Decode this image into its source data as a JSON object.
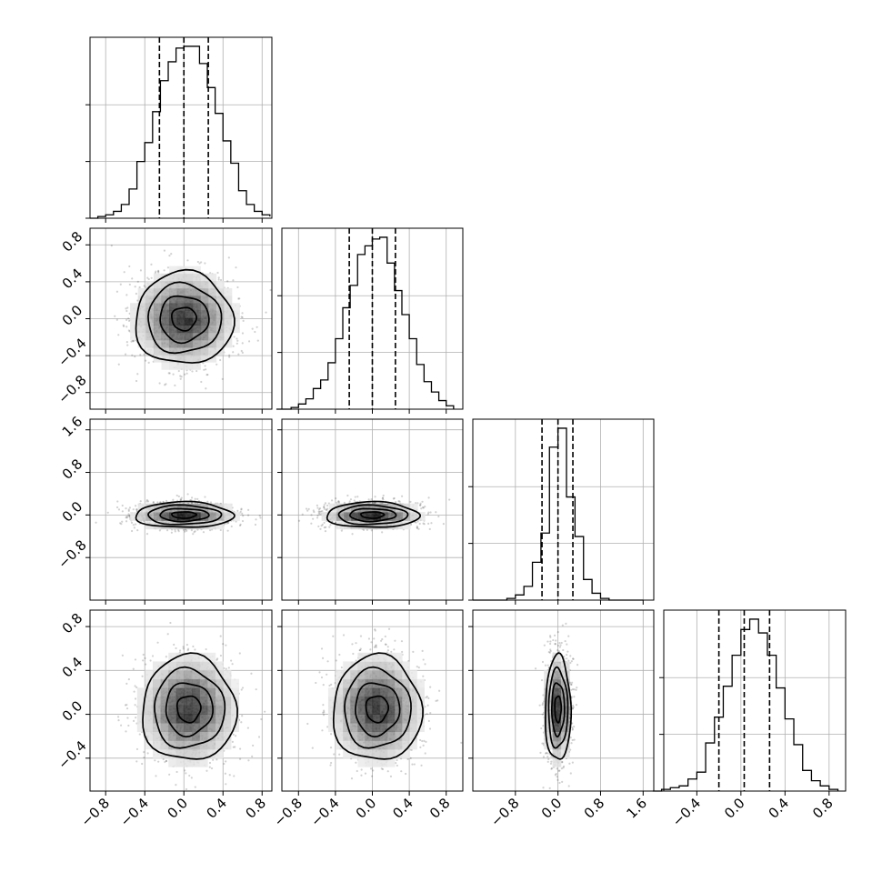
{
  "chart_data": {
    "type": "corner",
    "title": "",
    "n_params": 4,
    "grid": true,
    "quantiles_shown": [
      0.16,
      0.5,
      0.84
    ],
    "density_colormap": [
      "#ffffff",
      "#000000"
    ],
    "histograms": [
      {
        "index": 0,
        "bin_edges": [
          -0.96,
          -0.88,
          -0.8,
          -0.72,
          -0.64,
          -0.56,
          -0.48,
          -0.4,
          -0.32,
          -0.24,
          -0.16,
          -0.08,
          0.0,
          0.08,
          0.16,
          0.24,
          0.32,
          0.4,
          0.48,
          0.56,
          0.64,
          0.72,
          0.8,
          0.88
        ],
        "relative_counts": [
          0.0,
          0.01,
          0.02,
          0.04,
          0.08,
          0.17,
          0.33,
          0.44,
          0.62,
          0.8,
          0.91,
          0.99,
          1.0,
          1.0,
          0.9,
          0.76,
          0.61,
          0.45,
          0.32,
          0.16,
          0.08,
          0.04,
          0.02,
          0.01
        ],
        "quantiles": [
          -0.25,
          0.0,
          0.25
        ]
      },
      {
        "index": 1,
        "bin_edges": [
          -1.04,
          -0.96,
          -0.88,
          -0.8,
          -0.72,
          -0.64,
          -0.56,
          -0.48,
          -0.4,
          -0.32,
          -0.24,
          -0.16,
          -0.08,
          0.0,
          0.08,
          0.16,
          0.24,
          0.32,
          0.4,
          0.48,
          0.56,
          0.64,
          0.72,
          0.8,
          0.88
        ],
        "relative_counts": [
          0.0,
          0.0,
          0.01,
          0.03,
          0.06,
          0.12,
          0.17,
          0.27,
          0.41,
          0.59,
          0.72,
          0.9,
          0.95,
          0.99,
          1.0,
          0.85,
          0.69,
          0.55,
          0.41,
          0.26,
          0.16,
          0.1,
          0.05,
          0.02
        ],
        "quantiles": [
          -0.25,
          0.0,
          0.25
        ]
      },
      {
        "index": 2,
        "bin_edges": [
          -1.6,
          -1.44,
          -1.28,
          -1.12,
          -0.96,
          -0.8,
          -0.64,
          -0.48,
          -0.32,
          -0.16,
          0.0,
          0.16,
          0.32,
          0.48,
          0.64,
          0.8,
          0.96,
          1.12,
          1.28,
          1.44,
          1.6
        ],
        "relative_counts": [
          0.0,
          0.0,
          0.0,
          0.0,
          0.01,
          0.03,
          0.08,
          0.22,
          0.39,
          0.89,
          1.0,
          0.6,
          0.37,
          0.12,
          0.04,
          0.01,
          0.0,
          0.0,
          0.0,
          0.0
        ],
        "quantiles": [
          -0.3,
          0.0,
          0.28
        ]
      },
      {
        "index": 3,
        "bin_edges": [
          -0.8,
          -0.72,
          -0.64,
          -0.56,
          -0.48,
          -0.4,
          -0.32,
          -0.24,
          -0.16,
          -0.08,
          0.0,
          0.08,
          0.16,
          0.24,
          0.32,
          0.4,
          0.48,
          0.56,
          0.64,
          0.72,
          0.8,
          0.88
        ],
        "relative_counts": [
          0.0,
          0.01,
          0.02,
          0.03,
          0.07,
          0.11,
          0.28,
          0.43,
          0.61,
          0.79,
          0.94,
          1.0,
          0.92,
          0.79,
          0.6,
          0.42,
          0.27,
          0.12,
          0.06,
          0.03,
          0.01
        ],
        "quantiles": [
          -0.2,
          0.03,
          0.26
        ]
      }
    ],
    "pairs": [
      {
        "x_index": 0,
        "y_index": 1,
        "center": [
          0.0,
          0.0
        ],
        "sigma": [
          0.25,
          0.25
        ]
      },
      {
        "x_index": 0,
        "y_index": 2,
        "center": [
          0.0,
          0.0
        ],
        "sigma": [
          0.25,
          0.12
        ]
      },
      {
        "x_index": 1,
        "y_index": 2,
        "center": [
          0.0,
          0.0
        ],
        "sigma": [
          0.25,
          0.12
        ]
      },
      {
        "x_index": 0,
        "y_index": 3,
        "center": [
          0.05,
          0.05
        ],
        "sigma": [
          0.24,
          0.24
        ]
      },
      {
        "x_index": 1,
        "y_index": 3,
        "center": [
          0.05,
          0.05
        ],
        "sigma": [
          0.24,
          0.24
        ]
      },
      {
        "x_index": 2,
        "y_index": 3,
        "center": [
          0.0,
          0.05
        ],
        "sigma": [
          0.12,
          0.24
        ]
      }
    ],
    "axes": [
      {
        "index": 0,
        "range": [
          -0.96,
          0.9
        ],
        "ticks": [
          -0.8,
          -0.4,
          0.0,
          0.4,
          0.8
        ],
        "tick_labels": [
          "−0.8",
          "−0.4",
          "0.0",
          "0.4",
          "0.8"
        ]
      },
      {
        "index": 1,
        "range": [
          -0.98,
          0.98
        ],
        "ticks": [
          -0.8,
          -0.4,
          0.0,
          0.4,
          0.8
        ],
        "tick_labels": [
          "−0.8",
          "−0.4",
          "0.0",
          "0.4",
          "0.8"
        ]
      },
      {
        "index": 2,
        "range": [
          -1.6,
          1.8
        ],
        "ticks": [
          -0.8,
          0.0,
          0.8,
          1.6
        ],
        "tick_labels": [
          "−0.8",
          "0.0",
          "0.8",
          "1.6"
        ]
      },
      {
        "index": 3,
        "range": [
          -0.7,
          0.95
        ],
        "ticks": [
          -0.4,
          0.0,
          0.4,
          0.8
        ],
        "tick_labels": [
          "−0.4",
          "0.0",
          "0.4",
          "0.8"
        ]
      }
    ]
  }
}
